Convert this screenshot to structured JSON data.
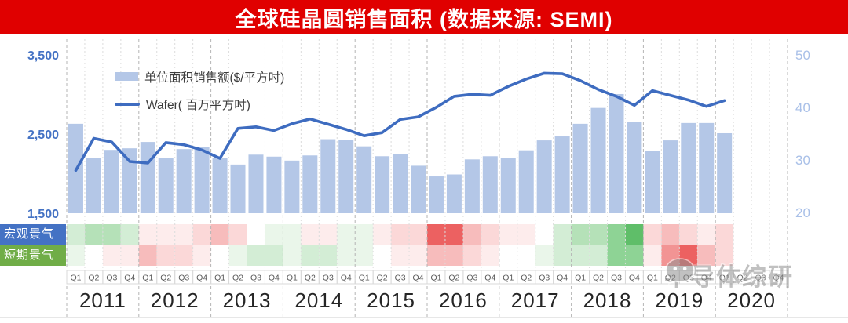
{
  "title": "全球硅晶圆销售面积 (数据来源: SEMI)",
  "legend": {
    "bar_label": "单位面积销售额($/平方吋)",
    "line_label": "Wafer( 百万平方吋)"
  },
  "heatmap_row_labels": {
    "macro": "宏观景气度",
    "short_term": "短期景气度"
  },
  "watermark": {
    "text": "半导体综研",
    "icon": "wechat-chat-bubble-icon"
  },
  "colors": {
    "title_bg": "#e00000",
    "title_text": "#ffffff",
    "bar": "#b4c7e7",
    "line": "#3e6cc0",
    "left_axis_text": "#4472c4",
    "right_axis_text": "#a9c0e8",
    "macro_label_bg": "#4472c4",
    "short_label_bg": "#70ad47",
    "grid": "#dcdcdc",
    "grid_year": "#b5b5b5",
    "quarter_text": "#595959",
    "year_text": "#262626",
    "heat_greens": [
      "#eaf6ea",
      "#d3edd5",
      "#b5e1b8",
      "#8ed395",
      "#5fbe69"
    ],
    "heat_reds": [
      "#fdecec",
      "#fbd8d8",
      "#f7bcbc",
      "#f29494",
      "#ec6161"
    ],
    "heat_neutral": "#ffffff"
  },
  "chart_data": {
    "type": "combo",
    "title": "全球硅晶圆销售面积 (数据来源: SEMI)",
    "categories": [
      "2011Q1",
      "2011Q2",
      "2011Q3",
      "2011Q4",
      "2012Q1",
      "2012Q2",
      "2012Q3",
      "2012Q4",
      "2013Q1",
      "2013Q2",
      "2013Q3",
      "2013Q4",
      "2014Q1",
      "2014Q2",
      "2014Q3",
      "2014Q4",
      "2015Q1",
      "2015Q2",
      "2015Q3",
      "2015Q4",
      "2016Q1",
      "2016Q2",
      "2016Q3",
      "2016Q4",
      "2017Q1",
      "2017Q2",
      "2017Q3",
      "2017Q4",
      "2018Q1",
      "2018Q2",
      "2018Q3",
      "2018Q4",
      "2019Q1",
      "2019Q2",
      "2019Q3",
      "2019Q4",
      "2020Q1"
    ],
    "series": [
      {
        "name": "单位面积销售额($/平方吋)",
        "type": "bar",
        "axis": "left",
        "values": [
          2630,
          2200,
          2300,
          2320,
          2400,
          2200,
          2310,
          2340,
          2195,
          2115,
          2240,
          2215,
          2165,
          2230,
          2435,
          2430,
          2345,
          2220,
          2250,
          2100,
          1965,
          1990,
          2180,
          2220,
          2195,
          2295,
          2420,
          2470,
          2630,
          2830,
          3005,
          2650,
          2290,
          2420,
          2640,
          2640,
          2510
        ]
      },
      {
        "name": "Wafer( 百万平方吋)",
        "type": "line",
        "axis": "right",
        "values": [
          28.0,
          34.1,
          33.4,
          29.7,
          29.4,
          33.3,
          32.9,
          31.9,
          30.3,
          36.0,
          36.3,
          35.6,
          36.9,
          37.8,
          36.8,
          35.8,
          34.6,
          35.2,
          37.7,
          38.2,
          40.0,
          42.1,
          42.5,
          42.3,
          44.0,
          45.4,
          46.5,
          46.4,
          45.1,
          43.4,
          42.1,
          40.4,
          43.2,
          42.3,
          41.4,
          40.2,
          41.3
        ]
      }
    ],
    "heatmap_rows": [
      {
        "label": "宏观景气度",
        "scale": "-5 strong red (weak) to +5 strong green (strong), 0 = white",
        "values": [
          2,
          3,
          3,
          2,
          -1,
          -1,
          -1,
          -2,
          -3,
          -2,
          0,
          1,
          1,
          -1,
          -1,
          1,
          1,
          -1,
          -2,
          -2,
          -5,
          -5,
          -3,
          -2,
          -1,
          -1,
          0,
          2,
          3,
          3,
          4,
          5,
          -2,
          -3,
          -2,
          -1,
          -2
        ]
      },
      {
        "label": "短期景气度",
        "scale": "-5 strong red (weak) to +5 strong green (strong), 0 = white",
        "values": [
          1,
          0,
          -1,
          -1,
          -3,
          -2,
          -2,
          -1,
          0,
          1,
          2,
          2,
          1,
          2,
          2,
          1,
          1,
          0,
          -1,
          -1,
          -3,
          -3,
          -2,
          -1,
          0,
          0,
          1,
          2,
          2,
          2,
          4,
          4,
          -1,
          -4,
          -5,
          -3,
          -2
        ]
      }
    ],
    "left_ylim": [
      1500,
      3500
    ],
    "right_ylim": [
      20,
      50
    ],
    "left_ticks": [
      "3,500",
      "2,500",
      "1,500"
    ],
    "right_ticks": [
      "50",
      "40",
      "30",
      "20"
    ],
    "x_quarters": [
      "Q1",
      "Q2",
      "Q3",
      "Q4"
    ],
    "x_years": [
      "2011",
      "2012",
      "2013",
      "2014",
      "2015",
      "2016",
      "2017",
      "2018",
      "2019",
      "2020"
    ],
    "grid": "vertical dashed per quarter, darker dashed per year",
    "legend_position": "top-left inside plot"
  }
}
